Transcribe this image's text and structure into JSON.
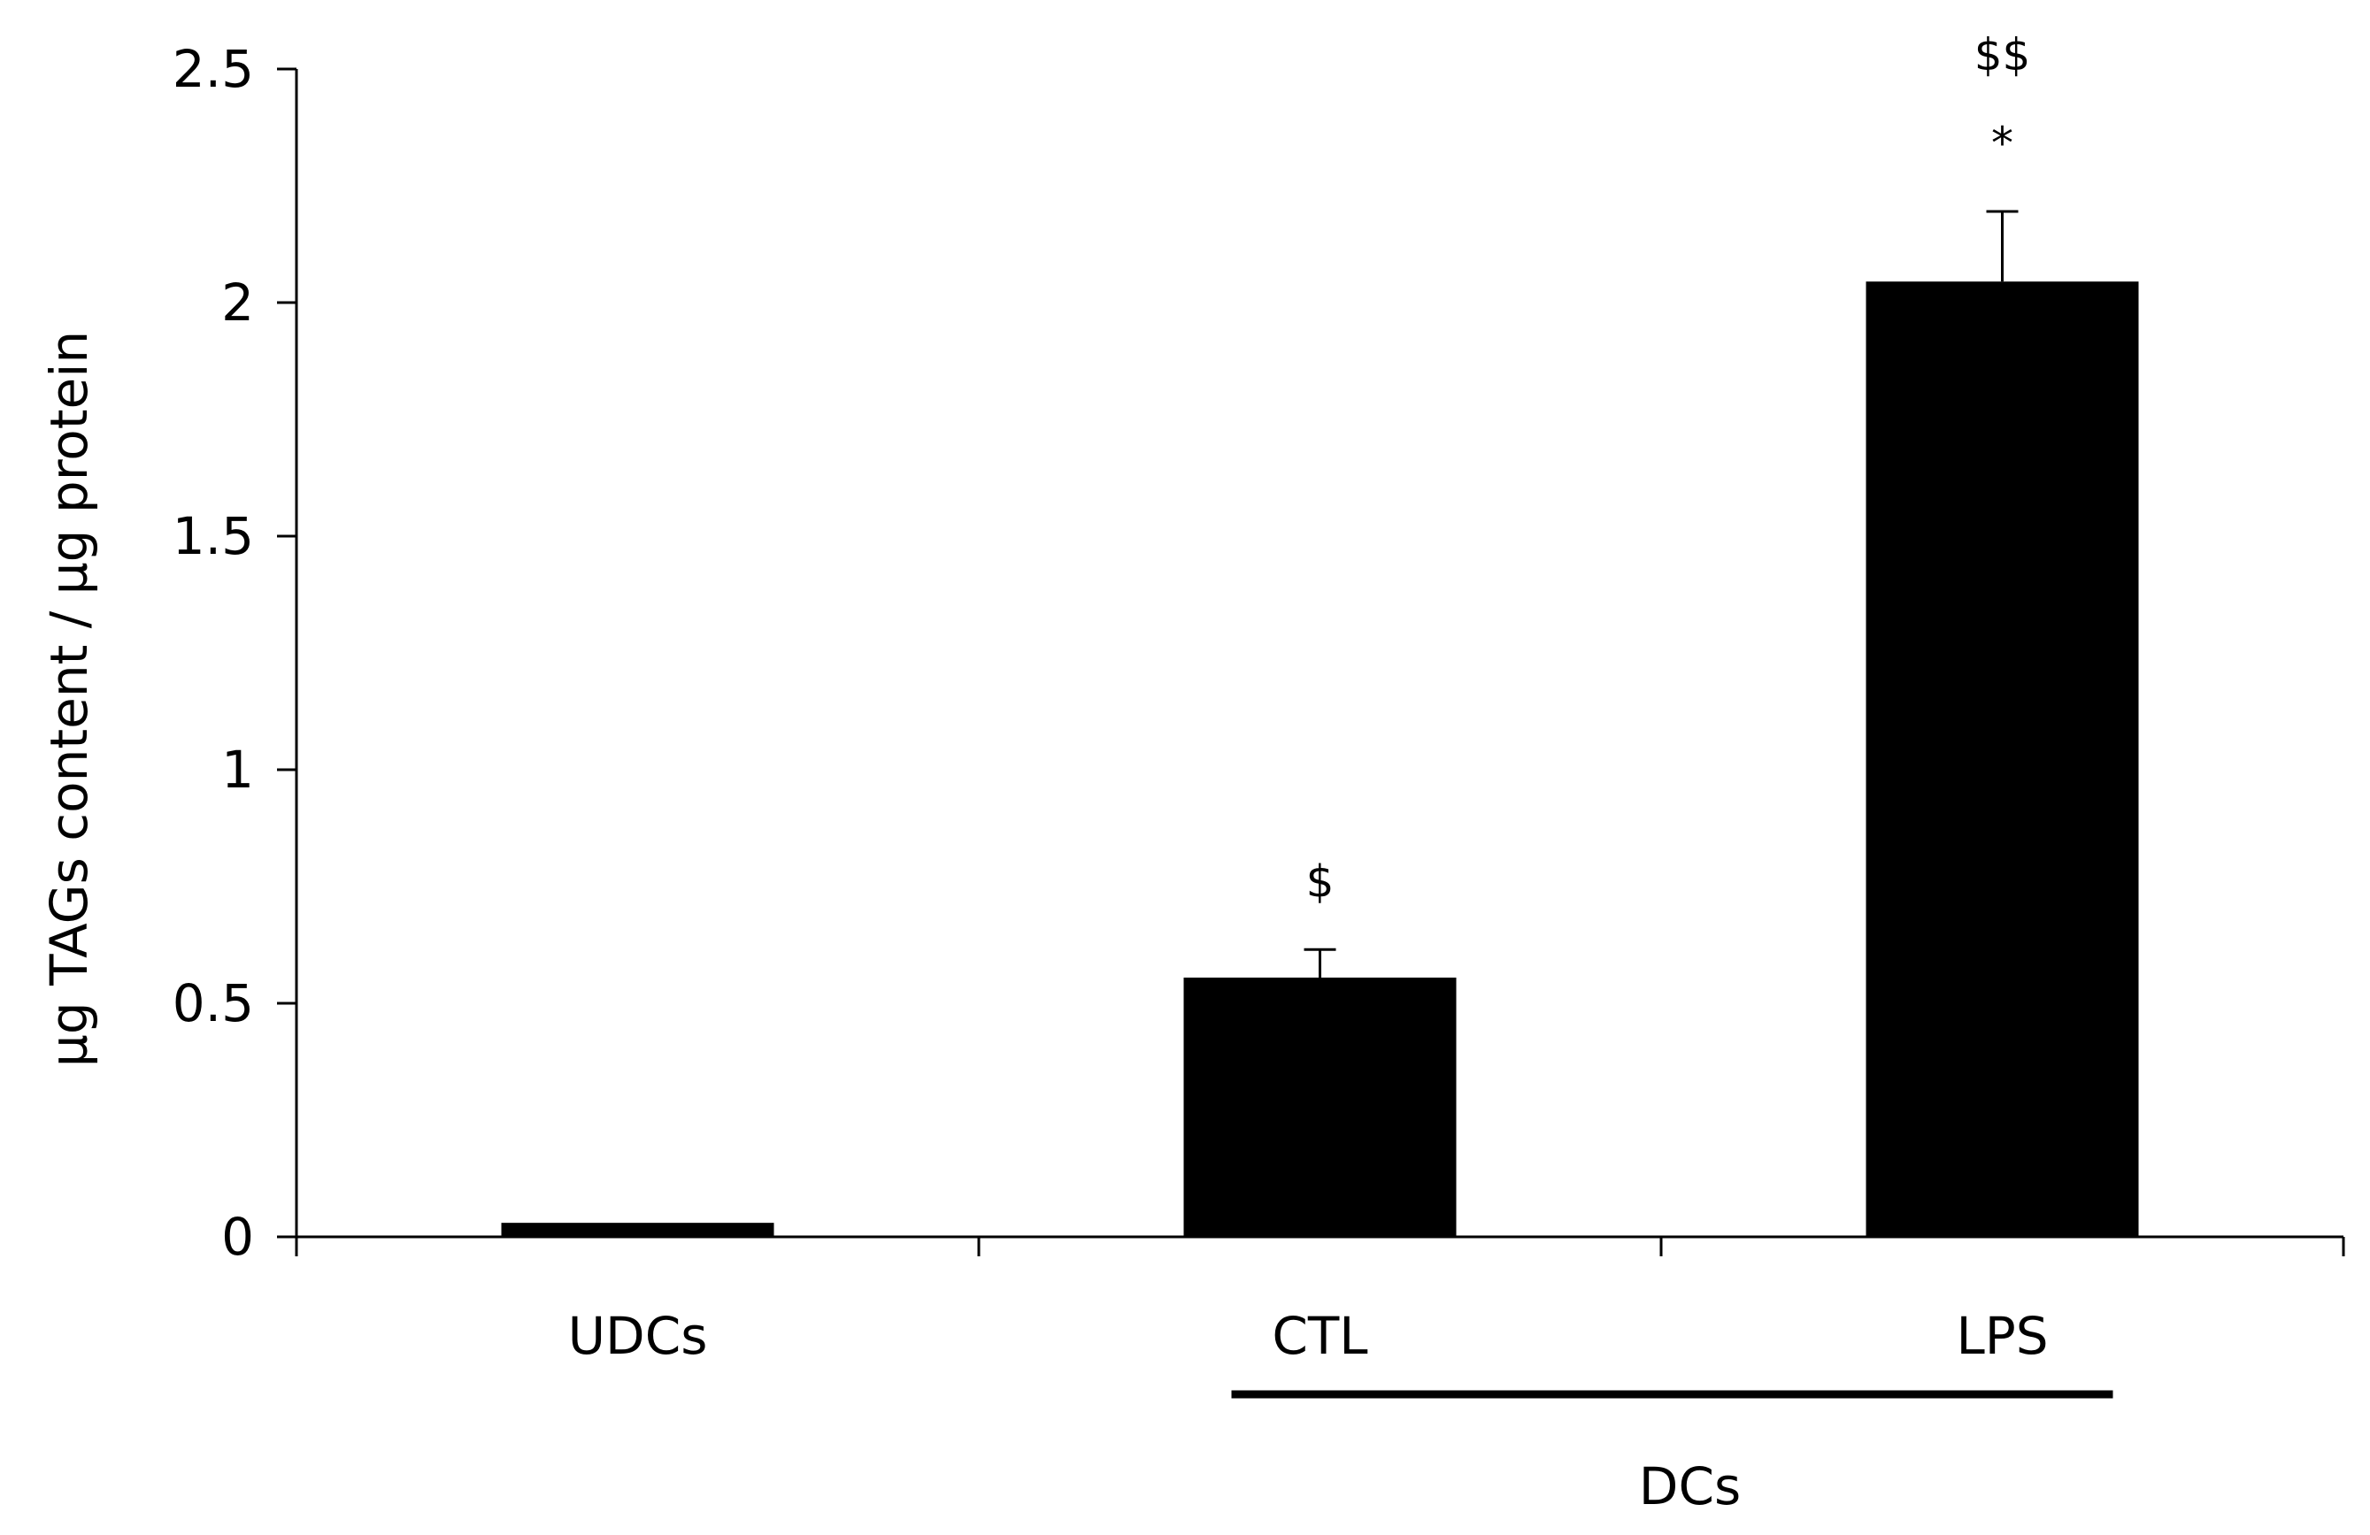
{
  "chart_data": {
    "type": "bar",
    "title": "",
    "xlabel": "",
    "ylabel": "µg TAGs content / µg protein",
    "ylim": [
      0,
      2.5
    ],
    "yticks": [
      "0",
      "0.5",
      "1",
      "1.5",
      "2",
      "2.5"
    ],
    "ytick_values": [
      0,
      0.5,
      1,
      1.5,
      2,
      2.5
    ],
    "categories": [
      "UDCs",
      "CTL",
      "LPS"
    ],
    "values": [
      0.03,
      0.555,
      2.045
    ],
    "error": [
      0,
      0.06,
      0.15
    ],
    "annotations": [
      {
        "category": "CTL",
        "lines": [
          "$"
        ]
      },
      {
        "category": "LPS",
        "lines": [
          "$$",
          "*"
        ]
      }
    ],
    "group_bracket": {
      "label": "DCs",
      "spans": [
        "CTL",
        "LPS"
      ]
    },
    "bar_color": "#000000",
    "grid": false,
    "legend": "none"
  }
}
